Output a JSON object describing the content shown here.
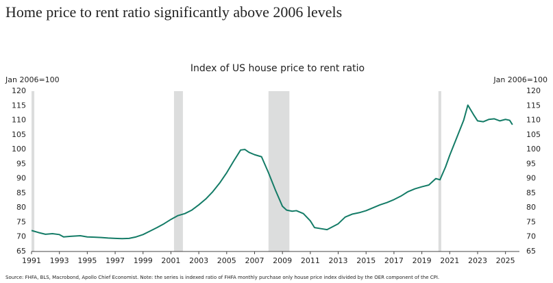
{
  "header": {
    "title": "Home price to rent ratio significantly above 2006 levels"
  },
  "chart_data": {
    "type": "line",
    "title": "Index of US house price to rent ratio",
    "y_label": "Jan 2006=100",
    "y2_label": "Jan 2006=100",
    "source": "Source: FHFA, BLS, Macrobond, Apollo Chief Economist. Note: the series is indexed ratio of FHFA monthly purchase only house price index divided by the OER component of the CPI.",
    "xlim": [
      1991,
      2026
    ],
    "xticks": [
      1991,
      1993,
      1995,
      1997,
      1999,
      2001,
      2003,
      2005,
      2007,
      2009,
      2011,
      2013,
      2015,
      2017,
      2019,
      2021,
      2023,
      2025
    ],
    "ylim": [
      65,
      120
    ],
    "yticks": [
      65,
      70,
      75,
      80,
      85,
      90,
      95,
      100,
      105,
      110,
      115,
      120
    ],
    "shaded_regions": [
      [
        1991,
        1991.2
      ],
      [
        2001.22,
        2001.86
      ],
      [
        2008.0,
        2009.5
      ],
      [
        2020.19,
        2020.39
      ]
    ],
    "shade_color": "#dcdddd",
    "series": [
      {
        "name": "Index of US house price to rent ratio",
        "color": "#137b66",
        "x": [
          1991.0,
          1991.5,
          1992.0,
          1992.5,
          1993.0,
          1993.3,
          1993.8,
          1994.5,
          1995.0,
          1995.5,
          1996.0,
          1996.5,
          1997.0,
          1997.5,
          1998.0,
          1998.5,
          1999.0,
          1999.5,
          2000.0,
          2000.5,
          2001.0,
          2001.5,
          2002.0,
          2002.5,
          2003.0,
          2003.5,
          2004.0,
          2004.5,
          2005.0,
          2005.5,
          2006.0,
          2006.3,
          2006.6,
          2007.0,
          2007.5,
          2008.0,
          2008.5,
          2009.0,
          2009.3,
          2009.7,
          2010.0,
          2010.5,
          2011.0,
          2011.3,
          2011.8,
          2012.2,
          2012.6,
          2013.0,
          2013.5,
          2014.0,
          2014.5,
          2015.0,
          2015.5,
          2016.0,
          2016.5,
          2017.0,
          2017.5,
          2018.0,
          2018.5,
          2019.0,
          2019.5,
          2020.0,
          2020.3,
          2020.7,
          2021.0,
          2021.5,
          2022.0,
          2022.3,
          2022.7,
          2023.0,
          2023.4,
          2023.8,
          2024.2,
          2024.6,
          2025.0,
          2025.3,
          2025.5
        ],
        "values": [
          72.2,
          71.5,
          70.9,
          71.1,
          70.8,
          70.0,
          70.2,
          70.4,
          70.0,
          69.9,
          69.8,
          69.6,
          69.5,
          69.4,
          69.5,
          70.0,
          70.8,
          72.0,
          73.2,
          74.5,
          76.0,
          77.3,
          78.0,
          79.2,
          81.0,
          83.0,
          85.5,
          88.5,
          92.0,
          96.0,
          99.8,
          100.0,
          99.0,
          98.2,
          97.5,
          92.0,
          86.0,
          80.5,
          79.2,
          78.8,
          79.0,
          78.0,
          75.5,
          73.2,
          72.8,
          72.5,
          73.5,
          74.5,
          76.8,
          77.8,
          78.3,
          79.0,
          80.0,
          81.0,
          81.8,
          82.8,
          84.0,
          85.5,
          86.5,
          87.2,
          87.8,
          90.0,
          89.6,
          94.0,
          98.0,
          104.0,
          110.0,
          115.2,
          112.0,
          109.8,
          109.5,
          110.3,
          110.5,
          109.8,
          110.3,
          110.0,
          108.5
        ]
      }
    ]
  }
}
